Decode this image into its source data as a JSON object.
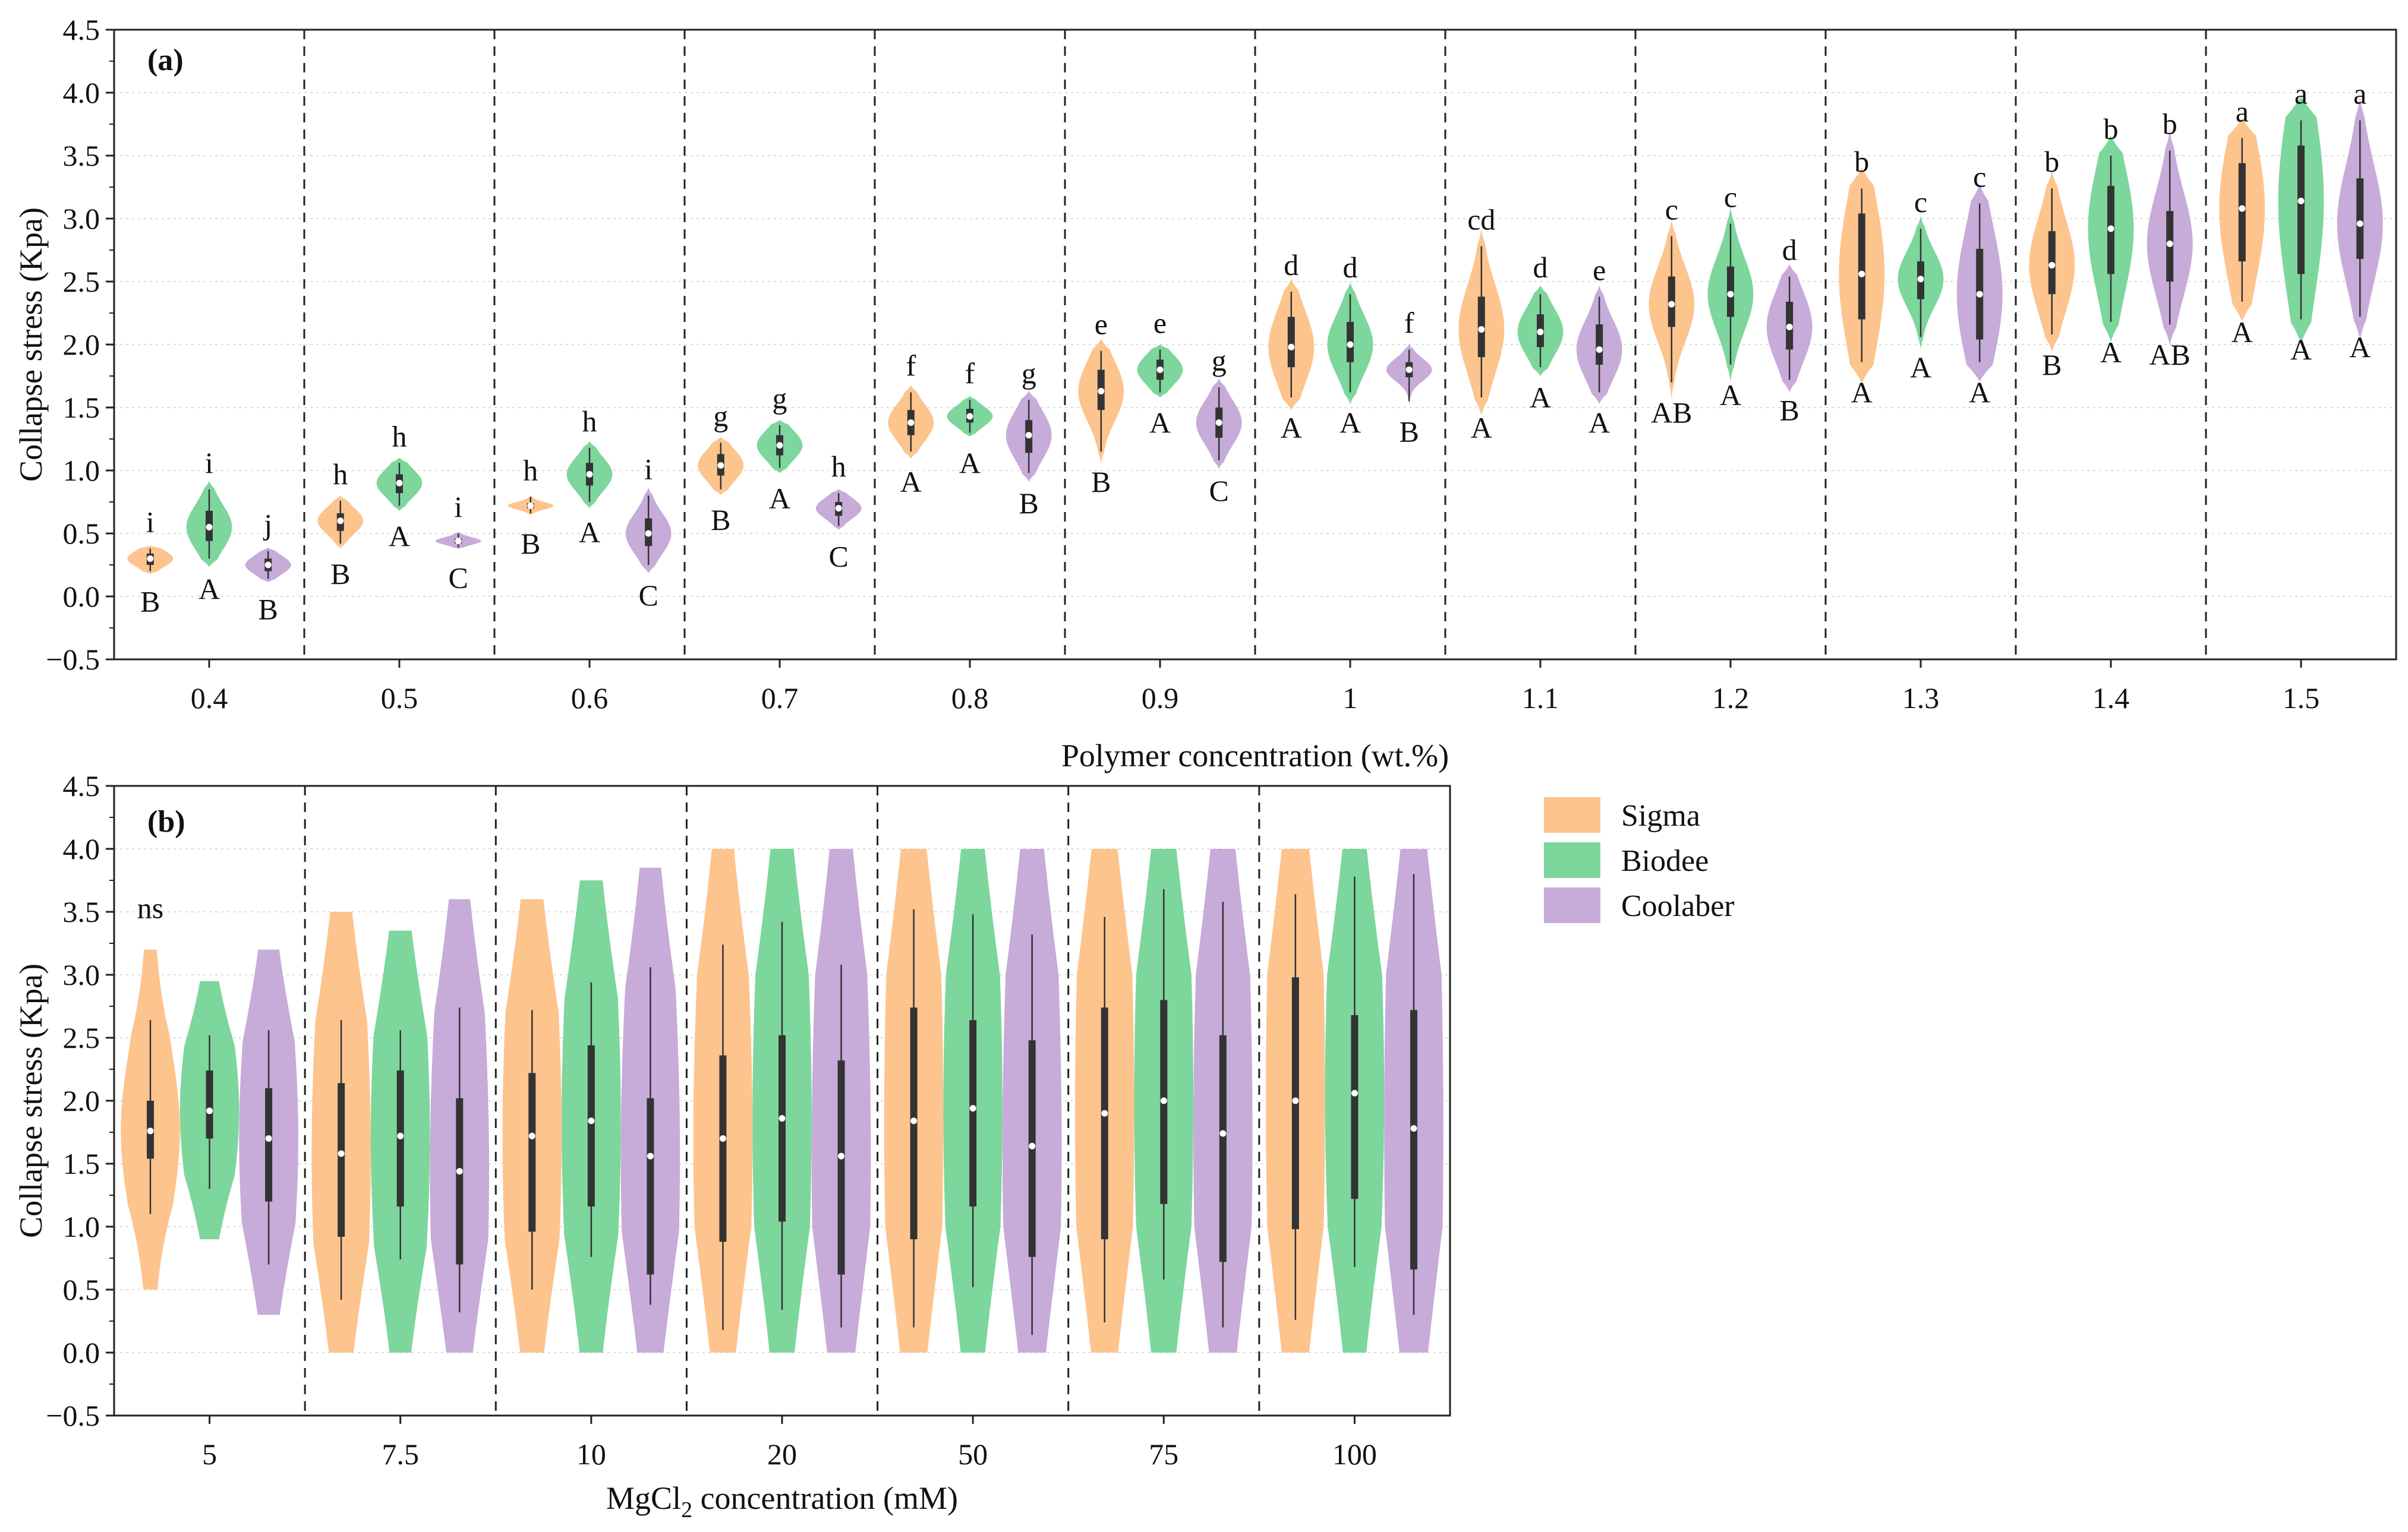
{
  "legend": [
    {
      "name": "Sigma",
      "color": "#FDC48E"
    },
    {
      "name": "Biodee",
      "color": "#7DD69C"
    },
    {
      "name": "Coolaber",
      "color": "#C7ABD8"
    }
  ],
  "chart_data": [
    {
      "type": "violin",
      "panel_label": "(a)",
      "xlabel": "Polymer concentration (wt.%)",
      "ylabel": "Collapse stress (Kpa)",
      "ylim": [
        -0.5,
        4.5
      ],
      "yticks": [
        "−0.5",
        "0.0",
        "0.5",
        "1.0",
        "1.5",
        "2.0",
        "2.5",
        "3.0",
        "3.5",
        "4.0",
        "4.5"
      ],
      "series": [
        "Sigma",
        "Biodee",
        "Coolaber"
      ],
      "groups": [
        {
          "label": "0.4",
          "violins": [
            {
              "median": 0.3,
              "q1": 0.25,
              "q3": 0.34,
              "min": 0.2,
              "max": 0.38,
              "top_letter": "i",
              "bottom_letter": "B"
            },
            {
              "median": 0.55,
              "q1": 0.44,
              "q3": 0.68,
              "min": 0.3,
              "max": 0.85,
              "top_letter": "i",
              "bottom_letter": "A"
            },
            {
              "median": 0.25,
              "q1": 0.2,
              "q3": 0.3,
              "min": 0.14,
              "max": 0.36,
              "top_letter": "j",
              "bottom_letter": "B"
            }
          ]
        },
        {
          "label": "0.5",
          "violins": [
            {
              "median": 0.6,
              "q1": 0.52,
              "q3": 0.66,
              "min": 0.42,
              "max": 0.76,
              "top_letter": "h",
              "bottom_letter": "B"
            },
            {
              "median": 0.9,
              "q1": 0.82,
              "q3": 0.97,
              "min": 0.72,
              "max": 1.06,
              "top_letter": "h",
              "bottom_letter": "A"
            },
            {
              "median": 0.44,
              "q1": 0.42,
              "q3": 0.46,
              "min": 0.39,
              "max": 0.5,
              "top_letter": "i",
              "bottom_letter": "C"
            }
          ]
        },
        {
          "label": "0.6",
          "violins": [
            {
              "median": 0.72,
              "q1": 0.7,
              "q3": 0.74,
              "min": 0.66,
              "max": 0.79,
              "top_letter": "h",
              "bottom_letter": "B"
            },
            {
              "median": 0.97,
              "q1": 0.88,
              "q3": 1.06,
              "min": 0.75,
              "max": 1.18,
              "top_letter": "h",
              "bottom_letter": "A"
            },
            {
              "median": 0.5,
              "q1": 0.4,
              "q3": 0.62,
              "min": 0.25,
              "max": 0.8,
              "top_letter": "i",
              "bottom_letter": "C"
            }
          ]
        },
        {
          "label": "0.7",
          "violins": [
            {
              "median": 1.04,
              "q1": 0.96,
              "q3": 1.13,
              "min": 0.85,
              "max": 1.22,
              "top_letter": "g",
              "bottom_letter": "B"
            },
            {
              "median": 1.2,
              "q1": 1.12,
              "q3": 1.28,
              "min": 1.02,
              "max": 1.36,
              "top_letter": "g",
              "bottom_letter": "A"
            },
            {
              "median": 0.7,
              "q1": 0.64,
              "q3": 0.75,
              "min": 0.56,
              "max": 0.82,
              "top_letter": "h",
              "bottom_letter": "C"
            }
          ]
        },
        {
          "label": "0.8",
          "violins": [
            {
              "median": 1.38,
              "q1": 1.28,
              "q3": 1.48,
              "min": 1.15,
              "max": 1.62,
              "top_letter": "f",
              "bottom_letter": "A"
            },
            {
              "median": 1.43,
              "q1": 1.38,
              "q3": 1.49,
              "min": 1.3,
              "max": 1.56,
              "top_letter": "f",
              "bottom_letter": "A"
            },
            {
              "median": 1.28,
              "q1": 1.14,
              "q3": 1.4,
              "min": 0.98,
              "max": 1.56,
              "top_letter": "g",
              "bottom_letter": "B"
            }
          ]
        },
        {
          "label": "0.9",
          "violins": [
            {
              "median": 1.63,
              "q1": 1.48,
              "q3": 1.8,
              "min": 1.15,
              "max": 1.95,
              "top_letter": "e",
              "bottom_letter": "B"
            },
            {
              "median": 1.8,
              "q1": 1.72,
              "q3": 1.88,
              "min": 1.62,
              "max": 1.96,
              "top_letter": "e",
              "bottom_letter": "A"
            },
            {
              "median": 1.38,
              "q1": 1.26,
              "q3": 1.5,
              "min": 1.08,
              "max": 1.66,
              "top_letter": "g",
              "bottom_letter": "C"
            }
          ]
        },
        {
          "label": "1",
          "violins": [
            {
              "median": 1.98,
              "q1": 1.82,
              "q3": 2.22,
              "min": 1.58,
              "max": 2.42,
              "top_letter": "d",
              "bottom_letter": "A"
            },
            {
              "median": 2.0,
              "q1": 1.86,
              "q3": 2.18,
              "min": 1.62,
              "max": 2.4,
              "top_letter": "d",
              "bottom_letter": "A"
            },
            {
              "median": 1.8,
              "q1": 1.74,
              "q3": 1.86,
              "min": 1.55,
              "max": 1.96,
              "top_letter": "f",
              "bottom_letter": "B"
            }
          ]
        },
        {
          "label": "1.1",
          "violins": [
            {
              "median": 2.12,
              "q1": 1.9,
              "q3": 2.38,
              "min": 1.58,
              "max": 2.78,
              "top_letter": "cd",
              "bottom_letter": "A"
            },
            {
              "median": 2.1,
              "q1": 1.98,
              "q3": 2.24,
              "min": 1.82,
              "max": 2.4,
              "top_letter": "d",
              "bottom_letter": "A"
            },
            {
              "median": 1.96,
              "q1": 1.84,
              "q3": 2.16,
              "min": 1.62,
              "max": 2.38,
              "top_letter": "e",
              "bottom_letter": "A"
            }
          ]
        },
        {
          "label": "1.2",
          "violins": [
            {
              "median": 2.32,
              "q1": 2.14,
              "q3": 2.54,
              "min": 1.7,
              "max": 2.86,
              "top_letter": "c",
              "bottom_letter": "AB"
            },
            {
              "median": 2.4,
              "q1": 2.22,
              "q3": 2.62,
              "min": 1.84,
              "max": 2.96,
              "top_letter": "c",
              "bottom_letter": "A"
            },
            {
              "median": 2.14,
              "q1": 1.96,
              "q3": 2.34,
              "min": 1.72,
              "max": 2.54,
              "top_letter": "d",
              "bottom_letter": "B"
            }
          ]
        },
        {
          "label": "1.3",
          "violins": [
            {
              "median": 2.56,
              "q1": 2.2,
              "q3": 3.04,
              "min": 1.86,
              "max": 3.24,
              "top_letter": "b",
              "bottom_letter": "A"
            },
            {
              "median": 2.52,
              "q1": 2.36,
              "q3": 2.66,
              "min": 2.06,
              "max": 2.92,
              "top_letter": "c",
              "bottom_letter": "A"
            },
            {
              "median": 2.4,
              "q1": 2.04,
              "q3": 2.76,
              "min": 1.86,
              "max": 3.12,
              "top_letter": "c",
              "bottom_letter": "A"
            }
          ]
        },
        {
          "label": "1.4",
          "violins": [
            {
              "median": 2.63,
              "q1": 2.4,
              "q3": 2.9,
              "min": 2.08,
              "max": 3.24,
              "top_letter": "b",
              "bottom_letter": "B"
            },
            {
              "median": 2.92,
              "q1": 2.56,
              "q3": 3.26,
              "min": 2.18,
              "max": 3.5,
              "top_letter": "b",
              "bottom_letter": "A"
            },
            {
              "median": 2.8,
              "q1": 2.5,
              "q3": 3.06,
              "min": 2.16,
              "max": 3.54,
              "top_letter": "b",
              "bottom_letter": "AB"
            }
          ]
        },
        {
          "label": "1.5",
          "violins": [
            {
              "median": 3.08,
              "q1": 2.66,
              "q3": 3.44,
              "min": 2.34,
              "max": 3.64,
              "top_letter": "a",
              "bottom_letter": "A"
            },
            {
              "median": 3.14,
              "q1": 2.56,
              "q3": 3.58,
              "min": 2.2,
              "max": 3.78,
              "top_letter": "a",
              "bottom_letter": "A"
            },
            {
              "median": 2.96,
              "q1": 2.68,
              "q3": 3.32,
              "min": 2.22,
              "max": 3.78,
              "top_letter": "a",
              "bottom_letter": "A"
            }
          ]
        }
      ]
    },
    {
      "type": "violin",
      "panel_label": "(b)",
      "xlabel_main": "MgCl",
      "xlabel_sub": "2",
      "xlabel_rest": " concentration (mM)",
      "ylabel": "Collapse stress (Kpa)",
      "ylim": [
        -0.5,
        4.5
      ],
      "yticks": [
        "−0.5",
        "0.0",
        "0.5",
        "1.0",
        "1.5",
        "2.0",
        "2.5",
        "3.0",
        "3.5",
        "4.0",
        "4.5"
      ],
      "series": [
        "Sigma",
        "Biodee",
        "Coolaber"
      ],
      "annotation": "ns",
      "groups": [
        {
          "label": "5",
          "violins": [
            {
              "median": 1.76,
              "q1": 1.54,
              "q3": 2.0,
              "min": 1.1,
              "max": 2.64,
              "vmin": 0.5,
              "vmax": 3.2
            },
            {
              "median": 1.92,
              "q1": 1.7,
              "q3": 2.24,
              "min": 1.3,
              "max": 2.52,
              "vmin": 0.9,
              "vmax": 2.95
            },
            {
              "median": 1.7,
              "q1": 1.2,
              "q3": 2.1,
              "min": 0.7,
              "max": 2.56,
              "vmin": 0.3,
              "vmax": 3.2
            }
          ]
        },
        {
          "label": "7.5",
          "violins": [
            {
              "median": 1.58,
              "q1": 0.92,
              "q3": 2.14,
              "min": 0.42,
              "max": 2.64,
              "vmin": 0.0,
              "vmax": 3.5
            },
            {
              "median": 1.72,
              "q1": 1.16,
              "q3": 2.24,
              "min": 0.74,
              "max": 2.56,
              "vmin": 0.0,
              "vmax": 3.35
            },
            {
              "median": 1.44,
              "q1": 0.7,
              "q3": 2.02,
              "min": 0.32,
              "max": 2.74,
              "vmin": 0.0,
              "vmax": 3.6
            }
          ]
        },
        {
          "label": "10",
          "violins": [
            {
              "median": 1.72,
              "q1": 0.96,
              "q3": 2.22,
              "min": 0.5,
              "max": 2.72,
              "vmin": 0.0,
              "vmax": 3.6
            },
            {
              "median": 1.84,
              "q1": 1.16,
              "q3": 2.44,
              "min": 0.76,
              "max": 2.94,
              "vmin": 0.0,
              "vmax": 3.75
            },
            {
              "median": 1.56,
              "q1": 0.62,
              "q3": 2.02,
              "min": 0.38,
              "max": 3.06,
              "vmin": 0.0,
              "vmax": 3.85
            }
          ]
        },
        {
          "label": "20",
          "violins": [
            {
              "median": 1.7,
              "q1": 0.88,
              "q3": 2.36,
              "min": 0.18,
              "max": 3.24,
              "vmin": 0.0,
              "vmax": 4.0
            },
            {
              "median": 1.86,
              "q1": 1.04,
              "q3": 2.52,
              "min": 0.34,
              "max": 3.42,
              "vmin": 0.0,
              "vmax": 4.0
            },
            {
              "median": 1.56,
              "q1": 0.62,
              "q3": 2.32,
              "min": 0.2,
              "max": 3.08,
              "vmin": 0.0,
              "vmax": 4.0
            }
          ]
        },
        {
          "label": "50",
          "violins": [
            {
              "median": 1.84,
              "q1": 0.9,
              "q3": 2.74,
              "min": 0.2,
              "max": 3.52,
              "vmin": 0.0,
              "vmax": 4.0
            },
            {
              "median": 1.94,
              "q1": 1.16,
              "q3": 2.64,
              "min": 0.52,
              "max": 3.48,
              "vmin": 0.0,
              "vmax": 4.0
            },
            {
              "median": 1.64,
              "q1": 0.76,
              "q3": 2.48,
              "min": 0.14,
              "max": 3.32,
              "vmin": 0.0,
              "vmax": 4.0
            }
          ]
        },
        {
          "label": "75",
          "violins": [
            {
              "median": 1.9,
              "q1": 0.9,
              "q3": 2.74,
              "min": 0.24,
              "max": 3.46,
              "vmin": 0.0,
              "vmax": 4.0
            },
            {
              "median": 2.0,
              "q1": 1.18,
              "q3": 2.8,
              "min": 0.58,
              "max": 3.68,
              "vmin": 0.0,
              "vmax": 4.0
            },
            {
              "median": 1.74,
              "q1": 0.72,
              "q3": 2.52,
              "min": 0.2,
              "max": 3.58,
              "vmin": 0.0,
              "vmax": 4.0
            }
          ]
        },
        {
          "label": "100",
          "violins": [
            {
              "median": 2.0,
              "q1": 0.98,
              "q3": 2.98,
              "min": 0.26,
              "max": 3.64,
              "vmin": 0.0,
              "vmax": 4.0
            },
            {
              "median": 2.06,
              "q1": 1.22,
              "q3": 2.68,
              "min": 0.68,
              "max": 3.78,
              "vmin": 0.0,
              "vmax": 4.0
            },
            {
              "median": 1.78,
              "q1": 0.66,
              "q3": 2.72,
              "min": 0.3,
              "max": 3.8,
              "vmin": 0.0,
              "vmax": 4.0
            }
          ]
        }
      ]
    }
  ]
}
